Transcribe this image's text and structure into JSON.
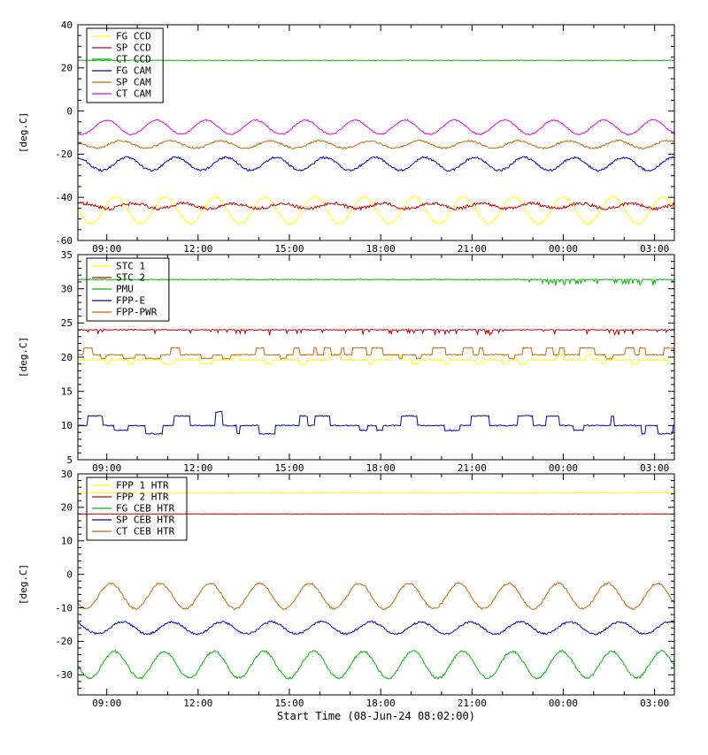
{
  "x_axis": {
    "label": "Start Time (08-Jun-24 08:02:00)",
    "start_h": 8.05,
    "end_h": 27.65,
    "major_ticks_h": [
      9,
      12,
      15,
      18,
      21,
      24,
      27
    ],
    "major_tick_labels": [
      "09:00",
      "12:00",
      "15:00",
      "18:00",
      "21:00",
      "00:00",
      "03:00"
    ],
    "minor_tick_every_h": 1
  },
  "chart_data": [
    {
      "type": "line",
      "title": "",
      "ylabel": "[deg.C]",
      "ylim": [
        -60,
        40
      ],
      "yticks": [
        40,
        20,
        0,
        -20,
        -40,
        -60
      ],
      "yminor": 4,
      "legend_position": "top-left",
      "series": [
        {
          "name": "FG CCD",
          "color": "#ffff00",
          "gen": "sine",
          "mean": -46,
          "amp": 6.2,
          "period": 1.633,
          "phase": 2.85,
          "noise": 0.45
        },
        {
          "name": "SP CCD",
          "color": "#cc0000",
          "gen": "sine",
          "mean": -44,
          "amp": 1.2,
          "period": 1.633,
          "phase": 0.6,
          "noise": 0.7
        },
        {
          "name": "CT CCD",
          "color": "#00bb00",
          "gen": "flat",
          "mean": 23.5,
          "noise": 0.12
        },
        {
          "name": "FG CAM",
          "color": "#0000cc",
          "gen": "sine",
          "mean": -24.5,
          "amp": 3.0,
          "period": 1.633,
          "phase": 1.5,
          "noise": 0.5
        },
        {
          "name": "SP CAM",
          "color": "#cc6600",
          "gen": "sine",
          "mean": -15.5,
          "amp": 1.7,
          "period": 1.633,
          "phase": 2.2,
          "noise": 0.4
        },
        {
          "name": "CT CAM",
          "color": "#ee00ee",
          "gen": "sine",
          "mean": -7.5,
          "amp": 3.3,
          "period": 1.633,
          "phase": 4.0,
          "noise": 0.3
        }
      ]
    },
    {
      "type": "line",
      "title": "",
      "ylabel": "[deg.C]",
      "ylim": [
        5,
        35
      ],
      "yticks": [
        35,
        30,
        25,
        20,
        15,
        10,
        5
      ],
      "yminor": 5,
      "legend_position": "top-left",
      "series": [
        {
          "name": "STC 1",
          "color": "#ffff00",
          "gen": "steps",
          "mean": 19.6,
          "levels": [
            0.7,
            -0.6
          ],
          "weights": [
            0.4,
            0.6
          ],
          "dwell": [
            3,
            12
          ],
          "dwell0": [
            8,
            30
          ],
          "noise": 0.08
        },
        {
          "name": "STC 2",
          "color": "#cc0000",
          "gen": "flat",
          "mean": 24.0,
          "noise": 0.07,
          "spike_prob": 0.1,
          "spike_min": 0.2,
          "spike_max": 0.8
        },
        {
          "name": "PMU",
          "color": "#00bb00",
          "gen": "flat",
          "mean": 31.35,
          "noise": 0.06,
          "spike_prob": 0.22,
          "spike_min": 0.2,
          "spike_max": 0.9,
          "spike_after": 22.8
        },
        {
          "name": "FPP-E",
          "color": "#0000cc",
          "gen": "steps",
          "mean": 10.0,
          "levels": [
            1.4,
            -1.2,
            2.0,
            -0.7
          ],
          "weights": [
            0.45,
            0.25,
            0.1,
            0.2
          ],
          "dwell": [
            3,
            18
          ],
          "dwell0": [
            6,
            30
          ],
          "noise": 0.08
        },
        {
          "name": "FPP-PWR",
          "color": "#cc6600",
          "gen": "steps",
          "mean": 20.35,
          "levels": [
            1.0,
            -0.55
          ],
          "weights": [
            0.55,
            0.45
          ],
          "dwell": [
            3,
            15
          ],
          "dwell0": [
            5,
            25
          ],
          "noise": 0.08
        }
      ]
    },
    {
      "type": "line",
      "title": "",
      "ylabel": "[deg.C]",
      "ylim": [
        -36,
        30
      ],
      "yticks": [
        30,
        20,
        10,
        0,
        -10,
        -20,
        -30
      ],
      "yminor": 5,
      "legend_position": "top-left",
      "series": [
        {
          "name": "FPP 1 HTR",
          "color": "#ffff00",
          "gen": "flat",
          "mean": 24.3,
          "noise": 0.1
        },
        {
          "name": "FPP 2 HTR",
          "color": "#cc0000",
          "gen": "flat",
          "mean": 18.0,
          "noise": 0.08
        },
        {
          "name": "FG CEB HTR",
          "color": "#00bb00",
          "gen": "sine",
          "mean": -27,
          "amp": 4.0,
          "period": 1.633,
          "phase": 3.0,
          "noise": 0.35
        },
        {
          "name": "SP CEB HTR",
          "color": "#0000cc",
          "gen": "sine",
          "mean": -16,
          "amp": 1.8,
          "period": 1.633,
          "phase": 2.0,
          "noise": 0.3
        },
        {
          "name": "CT CEB HTR",
          "color": "#cc6600",
          "gen": "sine",
          "mean": -6.5,
          "amp": 3.8,
          "period": 1.633,
          "phase": 3.5,
          "noise": 0.3
        }
      ]
    }
  ]
}
